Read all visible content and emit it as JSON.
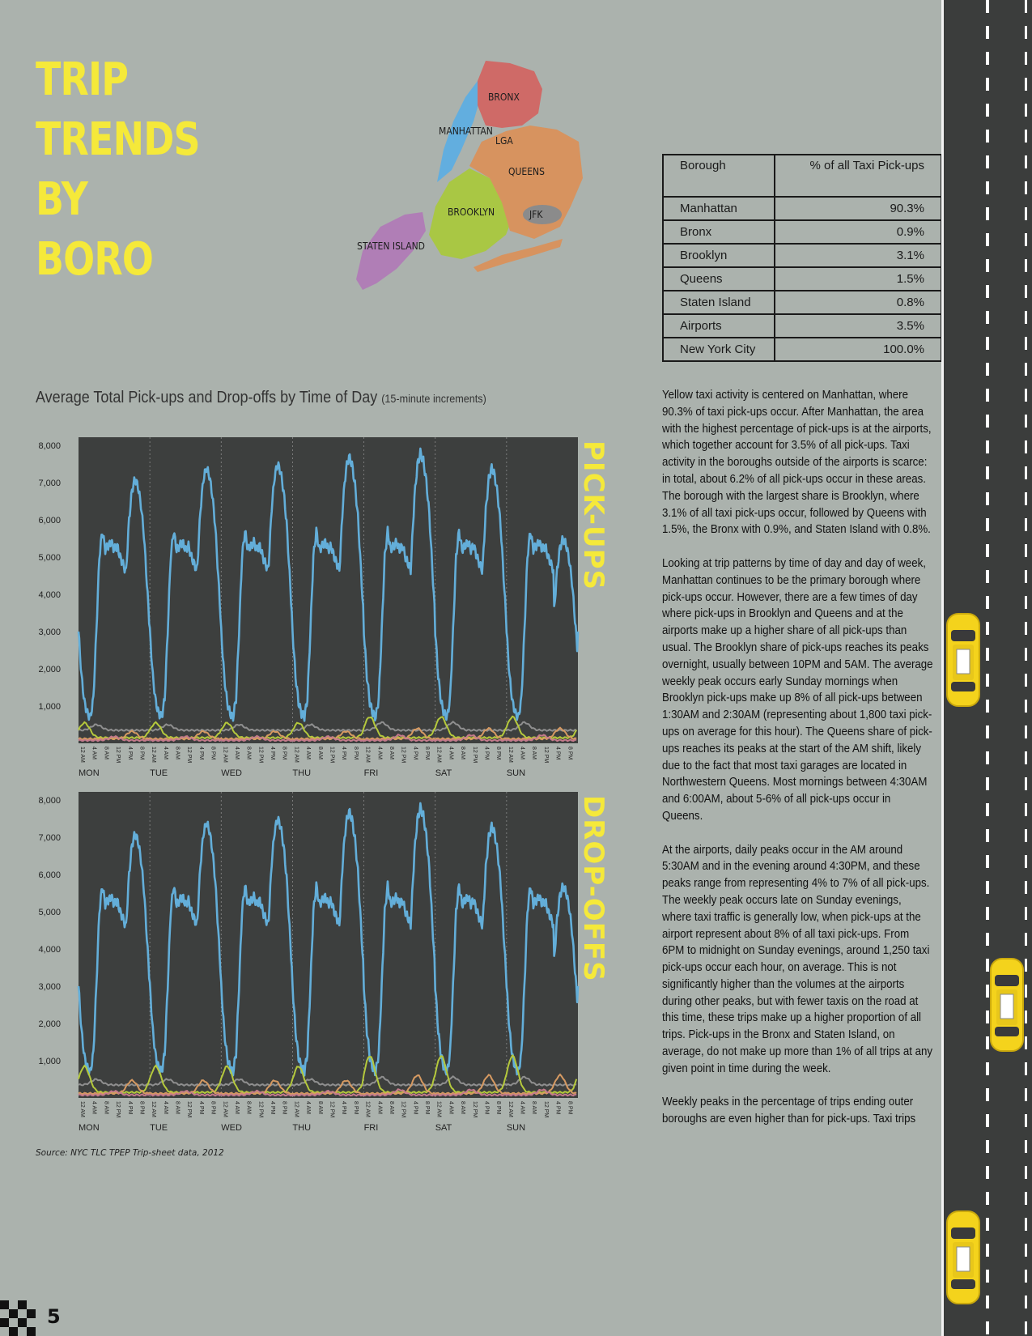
{
  "title_lines": [
    "TRIP",
    "TRENDS",
    "BY",
    "BORO"
  ],
  "map": {
    "labels": [
      "BRONX",
      "MANHATTAN",
      "LGA",
      "QUEENS",
      "BROOKLYN",
      "JFK",
      "STATEN ISLAND"
    ],
    "colors": {
      "bronx": "#cf6a67",
      "manhattan": "#62aedf",
      "queens": "#d7935f",
      "brooklyn": "#a9c744",
      "jfk": "#8b8b8b",
      "staten": "#b07eb6"
    }
  },
  "table": {
    "header": [
      "Borough",
      "% of all Taxi Pick-ups"
    ],
    "rows": [
      [
        "Manhattan",
        "90.3%"
      ],
      [
        "Bronx",
        "0.9%"
      ],
      [
        "Brooklyn",
        "3.1%"
      ],
      [
        "Queens",
        "1.5%"
      ],
      [
        "Staten Island",
        "0.8%"
      ],
      [
        "Airports",
        "3.5%"
      ],
      [
        "New York City",
        "100.0%"
      ]
    ]
  },
  "chart_title": "Average Total Pick-ups and Drop-offs by Time of Day",
  "chart_subtitle": "(15-minute increments)",
  "side_labels": {
    "pickups": "PICK-UPS",
    "dropoffs": "DROP-OFFS"
  },
  "source": "Source: NYC TLC TPEP Trip-sheet data, 2012",
  "page_number": "5",
  "paragraphs": [
    "Yellow taxi activity is centered on Manhattan, where 90.3% of taxi pick-ups occur.  After Manhattan, the area with the highest percentage of pick-ups is at the airports, which together account for 3.5% of all pick-ups.  Taxi activity in the boroughs outside of the airports is scarce: in total, about 6.2% of all pick-ups occur in these areas.  The borough with the largest share is Brooklyn, where 3.1% of all taxi pick-ups occur, followed by Queens with 1.5%, the Bronx with 0.9%, and Staten Island with 0.8%.",
    "Looking at trip patterns by time of day and day of week, Manhattan continues to be the primary borough where pick-ups occur.  However, there are a few times of day where pick-ups in Brooklyn and Queens and at the airports make up a higher share of all pick-ups than usual.  The Brooklyn share of pick-ups reaches its peaks overnight, usually between 10PM and 5AM.  The average weekly peak occurs early Sunday mornings when Brooklyn pick-ups make up 8% of all pick-ups between 1:30AM and 2:30AM (representing about 1,800 taxi pick-ups on average for this hour).  The Queens share of pick-ups reaches its peaks at the start of the AM shift, likely due to the fact that most taxi garages are located in Northwestern Queens.  Most mornings between 4:30AM and 6:00AM, about 5-6% of all pick-ups occur in Queens.",
    "At the airports, daily peaks occur in the AM around 5:30AM and in the evening around 4:30PM, and these peaks range from representing 4% to 7% of all pick-ups.  The weekly peak occurs late on Sunday evenings, where taxi traffic is generally low, when pick-ups at the airport represent about 8% of all taxi pick-ups.  From 6PM to midnight on Sunday evenings, around 1,250 taxi pick-ups occur each hour, on average. This is not significantly higher than the volumes at the airports during other peaks, but with fewer taxis on the road at this time, these trips make up a higher proportion of all trips.  Pick-ups in the Bronx and Staten Island, on average, do not make up more than 1% of all trips at any given point in time during the week.",
    "Weekly peaks in the percentage of trips ending outer boroughs are even higher than for pick-ups.  Taxi trips"
  ],
  "chart_data": [
    {
      "type": "line",
      "name": "pickups",
      "ylim": [
        0,
        8000
      ],
      "yticks": [
        "8,000",
        "7,000",
        "6,000",
        "5,000",
        "4,000",
        "3,000",
        "2,000",
        "1,000"
      ],
      "days": [
        "MON",
        "TUE",
        "WED",
        "THU",
        "FRI",
        "SAT",
        "SUN"
      ],
      "hour_ticks": [
        "12 AM",
        "4 AM",
        "8 AM",
        "12 PM",
        "4 PM",
        "8 PM"
      ],
      "day_template": {
        "hours": [
          0,
          1,
          2,
          3,
          4,
          5,
          6,
          7,
          8,
          9,
          10,
          11,
          12,
          13,
          14,
          15,
          16,
          17,
          18,
          19,
          20,
          21,
          22,
          23,
          24
        ],
        "manhattan": [
          3000,
          1800,
          1100,
          800,
          700,
          1200,
          3000,
          5000,
          5700,
          5200,
          5300,
          5400,
          5200,
          5300,
          5000,
          4800,
          4600,
          6000,
          6800,
          7100,
          6900,
          6400,
          5600,
          4300,
          3000
        ]
      },
      "day_peaks": [
        7100,
        7400,
        7500,
        7700,
        7800,
        7400,
        5500
      ],
      "series_colors": {
        "manhattan": "#63aed9",
        "other_grey": "#8f8f8f",
        "brooklyn": "#b5c93c",
        "queens": "#d69a62",
        "other_pink": "#c47a8c"
      }
    },
    {
      "type": "line",
      "name": "dropoffs",
      "ylim": [
        0,
        8000
      ],
      "yticks": [
        "8,000",
        "7,000",
        "6,000",
        "5,000",
        "4,000",
        "3,000",
        "2,000",
        "1,000"
      ],
      "days": [
        "MON",
        "TUE",
        "WED",
        "THU",
        "FRI",
        "SAT",
        "SUN"
      ],
      "hour_ticks": [
        "12 AM",
        "4 AM",
        "8 AM",
        "12 PM",
        "4 PM",
        "8 PM"
      ],
      "day_peaks": [
        7100,
        7400,
        7500,
        7700,
        7800,
        7300,
        5700
      ],
      "series_colors": {
        "manhattan": "#63aed9",
        "other_grey": "#8f8f8f",
        "brooklyn": "#b5c93c",
        "queens": "#d69a62",
        "other_pink": "#c47a8c"
      }
    }
  ]
}
